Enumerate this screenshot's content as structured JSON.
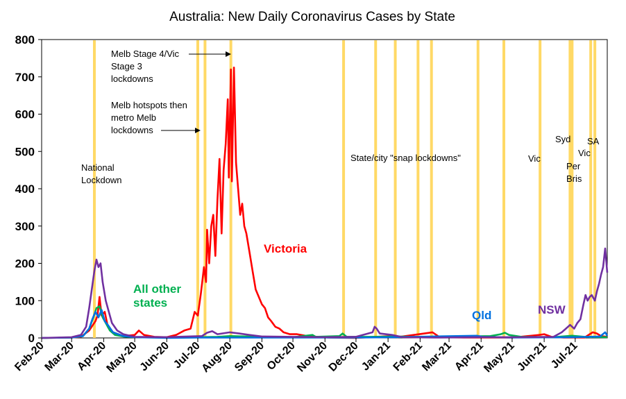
{
  "chart_data": {
    "type": "line",
    "title": "Australia: New Daily Coronavirus Cases by State",
    "xlabel": "",
    "ylabel": "",
    "ylim": [
      0,
      800
    ],
    "yticks": [
      0,
      100,
      200,
      300,
      400,
      500,
      600,
      700,
      800
    ],
    "xlim": [
      "2020-02-01",
      "2021-08-01"
    ],
    "xtick_labels": [
      "Feb-20",
      "Mar-20",
      "Apr-20",
      "May-20",
      "Jun-20",
      "Jul-20",
      "Aug-20",
      "Sep-20",
      "Oct-20",
      "Nov-20",
      "Dec-20",
      "Jan-21",
      "Feb-21",
      "Mar-21",
      "Apr-21",
      "May-21",
      "Jun-21",
      "Jul-21"
    ],
    "grid": false,
    "lockdown_lines": [
      "2020-03-23",
      "2020-07-01",
      "2020-07-08",
      "2020-08-02",
      "2020-11-19",
      "2020-12-20",
      "2021-01-08",
      "2021-01-30",
      "2021-02-12",
      "2021-03-29",
      "2021-04-23",
      "2021-05-28",
      "2021-06-26",
      "2021-06-28",
      "2021-07-16",
      "2021-07-20"
    ],
    "lockdown_color": "#FFD966",
    "annotations": [
      {
        "id": "national",
        "lines": [
          "National",
          "Lockdown"
        ]
      },
      {
        "id": "melb-stage4",
        "lines": [
          "Melb Stage 4/Vic",
          "Stage 3",
          "lockdowns"
        ]
      },
      {
        "id": "melb-hotspots",
        "lines": [
          "Melb hotspots then",
          "metro Melb",
          "lockdowns"
        ]
      },
      {
        "id": "snap",
        "lines": [
          "State/city \"snap lockdowns\""
        ]
      },
      {
        "id": "vic1",
        "lines": [
          "Vic"
        ]
      },
      {
        "id": "syd",
        "lines": [
          "Syd"
        ]
      },
      {
        "id": "per-bris",
        "lines": [
          "Per",
          "Bris"
        ]
      },
      {
        "id": "sa",
        "lines": [
          "SA"
        ]
      },
      {
        "id": "vic2",
        "lines": [
          "Vic"
        ]
      }
    ],
    "series_labels": [
      {
        "id": "victoria",
        "lines": [
          "Victoria"
        ],
        "color": "#FF0000"
      },
      {
        "id": "other",
        "lines": [
          "All other",
          "states"
        ],
        "color": "#00B050"
      },
      {
        "id": "qld",
        "lines": [
          "Qld"
        ],
        "color": "#0070E0"
      },
      {
        "id": "nsw",
        "lines": [
          "NSW"
        ],
        "color": "#7030A0"
      }
    ],
    "series": [
      {
        "name": "Victoria",
        "color": "#FF0000",
        "points": [
          [
            "2020-02-01",
            0
          ],
          [
            "2020-03-01",
            1
          ],
          [
            "2020-03-10",
            3
          ],
          [
            "2020-03-18",
            20
          ],
          [
            "2020-03-24",
            45
          ],
          [
            "2020-03-26",
            60
          ],
          [
            "2020-03-28",
            110
          ],
          [
            "2020-03-30",
            60
          ],
          [
            "2020-04-02",
            70
          ],
          [
            "2020-04-05",
            30
          ],
          [
            "2020-04-10",
            15
          ],
          [
            "2020-04-20",
            5
          ],
          [
            "2020-05-01",
            8
          ],
          [
            "2020-05-05",
            20
          ],
          [
            "2020-05-10",
            8
          ],
          [
            "2020-05-20",
            3
          ],
          [
            "2020-06-01",
            2
          ],
          [
            "2020-06-10",
            8
          ],
          [
            "2020-06-18",
            20
          ],
          [
            "2020-06-24",
            25
          ],
          [
            "2020-06-28",
            70
          ],
          [
            "2020-07-01",
            60
          ],
          [
            "2020-07-04",
            120
          ],
          [
            "2020-07-07",
            190
          ],
          [
            "2020-07-09",
            150
          ],
          [
            "2020-07-10",
            290
          ],
          [
            "2020-07-12",
            200
          ],
          [
            "2020-07-14",
            300
          ],
          [
            "2020-07-16",
            330
          ],
          [
            "2020-07-18",
            220
          ],
          [
            "2020-07-20",
            370
          ],
          [
            "2020-07-22",
            480
          ],
          [
            "2020-07-24",
            280
          ],
          [
            "2020-07-26",
            450
          ],
          [
            "2020-07-28",
            520
          ],
          [
            "2020-07-30",
            640
          ],
          [
            "2020-07-31",
            430
          ],
          [
            "2020-08-02",
            720
          ],
          [
            "2020-08-03",
            420
          ],
          [
            "2020-08-05",
            725
          ],
          [
            "2020-08-07",
            470
          ],
          [
            "2020-08-09",
            400
          ],
          [
            "2020-08-11",
            330
          ],
          [
            "2020-08-13",
            360
          ],
          [
            "2020-08-15",
            300
          ],
          [
            "2020-08-17",
            280
          ],
          [
            "2020-08-20",
            230
          ],
          [
            "2020-08-23",
            180
          ],
          [
            "2020-08-26",
            130
          ],
          [
            "2020-08-29",
            110
          ],
          [
            "2020-09-01",
            90
          ],
          [
            "2020-09-04",
            80
          ],
          [
            "2020-09-07",
            55
          ],
          [
            "2020-09-10",
            45
          ],
          [
            "2020-09-14",
            30
          ],
          [
            "2020-09-18",
            25
          ],
          [
            "2020-09-22",
            15
          ],
          [
            "2020-09-28",
            10
          ],
          [
            "2020-10-05",
            10
          ],
          [
            "2020-10-15",
            5
          ],
          [
            "2020-10-25",
            3
          ],
          [
            "2020-11-05",
            1
          ],
          [
            "2020-12-01",
            0
          ],
          [
            "2021-01-03",
            5
          ],
          [
            "2021-01-10",
            2
          ],
          [
            "2021-02-13",
            15
          ],
          [
            "2021-02-20",
            2
          ],
          [
            "2021-03-15",
            1
          ],
          [
            "2021-05-01",
            1
          ],
          [
            "2021-05-27",
            8
          ],
          [
            "2021-06-01",
            10
          ],
          [
            "2021-06-08",
            3
          ],
          [
            "2021-06-20",
            1
          ],
          [
            "2021-07-10",
            1
          ],
          [
            "2021-07-15",
            10
          ],
          [
            "2021-07-18",
            15
          ],
          [
            "2021-07-22",
            12
          ],
          [
            "2021-07-26",
            5
          ],
          [
            "2021-08-01",
            3
          ]
        ]
      },
      {
        "name": "All other states",
        "color": "#00B050",
        "points": [
          [
            "2020-02-01",
            0
          ],
          [
            "2020-03-01",
            1
          ],
          [
            "2020-03-12",
            5
          ],
          [
            "2020-03-18",
            25
          ],
          [
            "2020-03-22",
            55
          ],
          [
            "2020-03-25",
            80
          ],
          [
            "2020-03-28",
            85
          ],
          [
            "2020-03-31",
            55
          ],
          [
            "2020-04-03",
            40
          ],
          [
            "2020-04-07",
            20
          ],
          [
            "2020-04-12",
            8
          ],
          [
            "2020-04-20",
            4
          ],
          [
            "2020-05-01",
            2
          ],
          [
            "2020-06-01",
            1
          ],
          [
            "2020-07-01",
            2
          ],
          [
            "2020-07-20",
            3
          ],
          [
            "2020-08-01",
            5
          ],
          [
            "2020-09-01",
            3
          ],
          [
            "2020-10-01",
            2
          ],
          [
            "2020-10-20",
            8
          ],
          [
            "2020-10-23",
            3
          ],
          [
            "2020-11-15",
            5
          ],
          [
            "2020-11-18",
            12
          ],
          [
            "2020-11-22",
            3
          ],
          [
            "2020-12-15",
            3
          ],
          [
            "2021-01-10",
            4
          ],
          [
            "2021-02-10",
            2
          ],
          [
            "2021-03-15",
            4
          ],
          [
            "2021-04-10",
            5
          ],
          [
            "2021-04-20",
            10
          ],
          [
            "2021-04-24",
            14
          ],
          [
            "2021-04-28",
            8
          ],
          [
            "2021-05-10",
            3
          ],
          [
            "2021-06-10",
            2
          ],
          [
            "2021-06-28",
            6
          ],
          [
            "2021-07-10",
            3
          ],
          [
            "2021-08-01",
            2
          ]
        ]
      },
      {
        "name": "Qld",
        "color": "#0070E0",
        "points": [
          [
            "2020-02-01",
            0
          ],
          [
            "2020-03-01",
            1
          ],
          [
            "2020-03-12",
            5
          ],
          [
            "2020-03-18",
            25
          ],
          [
            "2020-03-21",
            50
          ],
          [
            "2020-03-24",
            70
          ],
          [
            "2020-03-27",
            55
          ],
          [
            "2020-03-30",
            75
          ],
          [
            "2020-04-02",
            45
          ],
          [
            "2020-04-05",
            35
          ],
          [
            "2020-04-10",
            15
          ],
          [
            "2020-04-20",
            5
          ],
          [
            "2020-05-01",
            2
          ],
          [
            "2020-06-01",
            0
          ],
          [
            "2020-07-01",
            1
          ],
          [
            "2020-09-01",
            1
          ],
          [
            "2020-12-01",
            1
          ],
          [
            "2021-01-08",
            2
          ],
          [
            "2021-03-28",
            6
          ],
          [
            "2021-04-02",
            3
          ],
          [
            "2021-05-01",
            1
          ],
          [
            "2021-07-01",
            2
          ],
          [
            "2021-07-25",
            4
          ],
          [
            "2021-07-30",
            15
          ],
          [
            "2021-08-01",
            6
          ]
        ]
      },
      {
        "name": "NSW",
        "color": "#7030A0",
        "points": [
          [
            "2020-02-01",
            0
          ],
          [
            "2020-03-01",
            2
          ],
          [
            "2020-03-10",
            8
          ],
          [
            "2020-03-15",
            30
          ],
          [
            "2020-03-18",
            80
          ],
          [
            "2020-03-21",
            140
          ],
          [
            "2020-03-23",
            180
          ],
          [
            "2020-03-25",
            210
          ],
          [
            "2020-03-27",
            190
          ],
          [
            "2020-03-29",
            200
          ],
          [
            "2020-03-31",
            150
          ],
          [
            "2020-04-03",
            100
          ],
          [
            "2020-04-06",
            70
          ],
          [
            "2020-04-09",
            40
          ],
          [
            "2020-04-14",
            20
          ],
          [
            "2020-04-20",
            10
          ],
          [
            "2020-05-01",
            3
          ],
          [
            "2020-06-01",
            2
          ],
          [
            "2020-07-05",
            5
          ],
          [
            "2020-07-10",
            14
          ],
          [
            "2020-07-15",
            18
          ],
          [
            "2020-07-20",
            10
          ],
          [
            "2020-08-01",
            15
          ],
          [
            "2020-08-10",
            12
          ],
          [
            "2020-08-20",
            8
          ],
          [
            "2020-09-01",
            4
          ],
          [
            "2020-10-01",
            3
          ],
          [
            "2020-11-01",
            2
          ],
          [
            "2020-12-01",
            3
          ],
          [
            "2020-12-17",
            15
          ],
          [
            "2020-12-19",
            30
          ],
          [
            "2020-12-21",
            25
          ],
          [
            "2020-12-24",
            12
          ],
          [
            "2021-01-05",
            8
          ],
          [
            "2021-01-15",
            2
          ],
          [
            "2021-02-15",
            1
          ],
          [
            "2021-04-01",
            2
          ],
          [
            "2021-05-15",
            2
          ],
          [
            "2021-06-10",
            3
          ],
          [
            "2021-06-18",
            15
          ],
          [
            "2021-06-22",
            25
          ],
          [
            "2021-06-26",
            35
          ],
          [
            "2021-06-30",
            25
          ],
          [
            "2021-07-03",
            40
          ],
          [
            "2021-07-06",
            50
          ],
          [
            "2021-07-09",
            90
          ],
          [
            "2021-07-11",
            115
          ],
          [
            "2021-07-13",
            100
          ],
          [
            "2021-07-15",
            110
          ],
          [
            "2021-07-17",
            115
          ],
          [
            "2021-07-20",
            100
          ],
          [
            "2021-07-22",
            125
          ],
          [
            "2021-07-24",
            145
          ],
          [
            "2021-07-26",
            170
          ],
          [
            "2021-07-28",
            190
          ],
          [
            "2021-07-30",
            240
          ],
          [
            "2021-08-01",
            175
          ]
        ]
      }
    ]
  }
}
